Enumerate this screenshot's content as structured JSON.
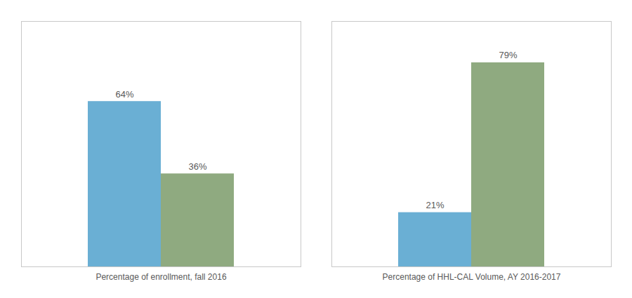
{
  "chart_data": {
    "type": "bar",
    "categories": [
      "Percentage of enrollment, fall 2016",
      "Percentage of HHL-CAL Volume, AY 2016-2017"
    ],
    "series": [
      {
        "color": "#6aafd4",
        "values": [
          64,
          21
        ],
        "value_labels": [
          "64%",
          "21%"
        ]
      },
      {
        "color": "#8faa80",
        "values": [
          36,
          79
        ],
        "value_labels": [
          "36%",
          "79%"
        ]
      }
    ],
    "ylim": [
      0,
      95
    ],
    "grid": false,
    "data_labels": true,
    "tick_labels": "x"
  }
}
